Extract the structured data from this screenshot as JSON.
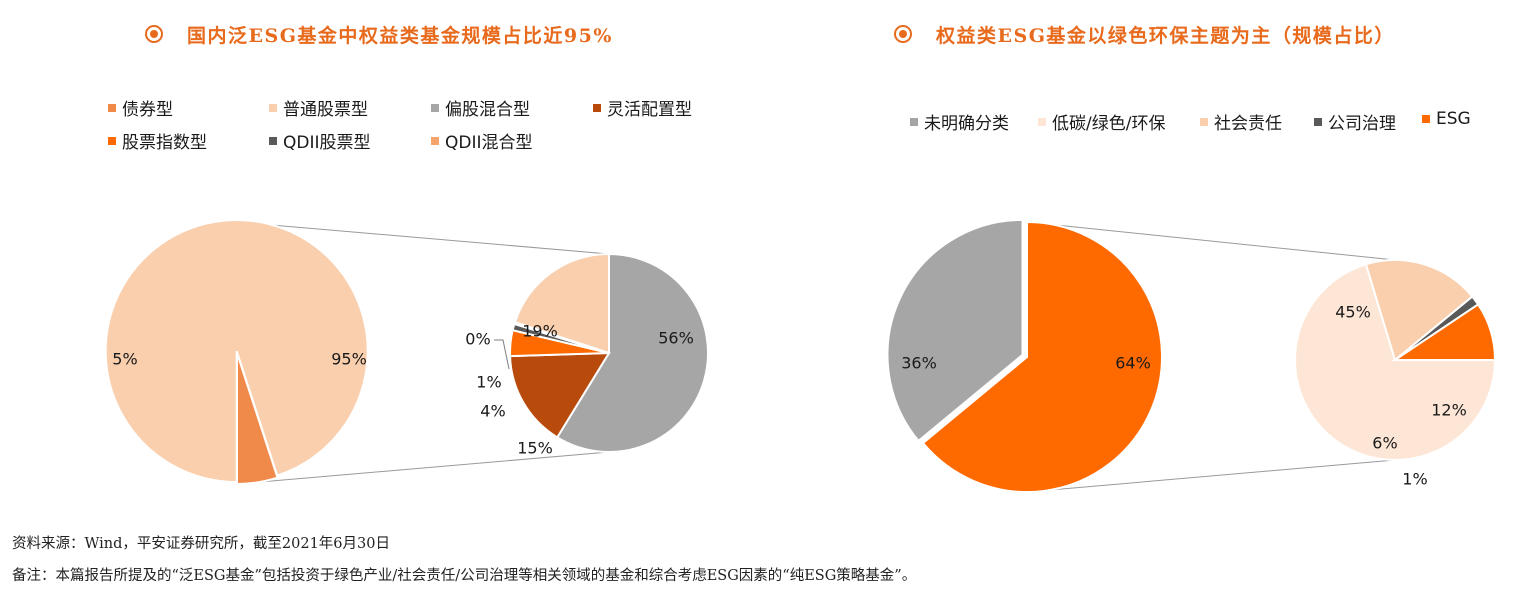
{
  "panel1": {
    "title": "国内泛ESG基金中权益类基金规模占比近95%"
  },
  "panel2": {
    "title": "权益类ESG基金以绿色环保主题为主（规模占比）"
  },
  "legend1": [
    {
      "label": "债券型",
      "color": "#f08a4b"
    },
    {
      "label": "普通股票型",
      "color": "#f9cfae"
    },
    {
      "label": "偏股混合型",
      "color": "#a6a6a6"
    },
    {
      "label": "灵活配置型",
      "color": "#b84a0c"
    },
    {
      "label": "股票指数型",
      "color": "#ff6a00"
    },
    {
      "label": "QDII股票型",
      "color": "#595959"
    },
    {
      "label": "QDII混合型",
      "color": "#f5a46e"
    }
  ],
  "legend2": [
    {
      "label": "未明确分类",
      "color": "#a6a6a6"
    },
    {
      "label": "低碳/绿色/环保",
      "color": "#fde6d6"
    },
    {
      "label": "社会责任",
      "color": "#f9cfae"
    },
    {
      "label": "公司治理",
      "color": "#595959"
    },
    {
      "label": "ESG",
      "color": "#ff6a00"
    }
  ],
  "chart_data": [
    {
      "type": "pie",
      "title": "国内泛ESG基金中权益类基金规模占比近95%",
      "slices": [
        {
          "name": "权益类",
          "value": 95,
          "label": "95%",
          "color": "#f9cfae"
        },
        {
          "name": "债券型",
          "value": 5,
          "label": "5%",
          "color": "#f08a4b"
        }
      ]
    },
    {
      "type": "pie",
      "title": "",
      "slices": [
        {
          "name": "偏股混合型",
          "value": 56,
          "label": "56%",
          "color": "#a6a6a6"
        },
        {
          "name": "灵活配置型",
          "value": 15,
          "label": "15%",
          "color": "#b84a0c"
        },
        {
          "name": "股票指数型",
          "value": 4,
          "label": "4%",
          "color": "#ff6a00"
        },
        {
          "name": "QDII股票型",
          "value": 1,
          "label": "1%",
          "color": "#595959"
        },
        {
          "name": "QDII混合型",
          "value": 0.3,
          "label": "0%",
          "color": "#f5a46e"
        },
        {
          "name": "普通股票型",
          "value": 19,
          "label": "19%",
          "color": "#f9cfae"
        }
      ]
    },
    {
      "type": "pie",
      "title": "权益类ESG基金以绿色环保主题为主（规模占比）",
      "slices": [
        {
          "name": "ESG",
          "value": 64,
          "label": "64%",
          "color": "#ff6a00"
        },
        {
          "name": "未明确分类",
          "value": 36,
          "label": "36%",
          "color": "#a6a6a6"
        }
      ]
    },
    {
      "type": "pie",
      "title": "",
      "slices": [
        {
          "name": "低碳/绿色/环保",
          "value": 45,
          "label": "45%",
          "color": "#fde6d6"
        },
        {
          "name": "社会责任",
          "value": 12,
          "label": "12%",
          "color": "#f9cfae"
        },
        {
          "name": "公司治理",
          "value": 1,
          "label": "1%",
          "color": "#595959"
        },
        {
          "name": "ESG",
          "value": 6,
          "label": "6%",
          "color": "#ff6a00"
        }
      ]
    }
  ],
  "footer": {
    "source": "资料来源：Wind，平安证券研究所，截至2021年6月30日",
    "note": "备注：本篇报告所提及的“泛ESG基金”包括投资于绿色产业/社会责任/公司治理等相关领域的基金和综合考虑ESG因素的“纯ESG策略基金”。"
  }
}
